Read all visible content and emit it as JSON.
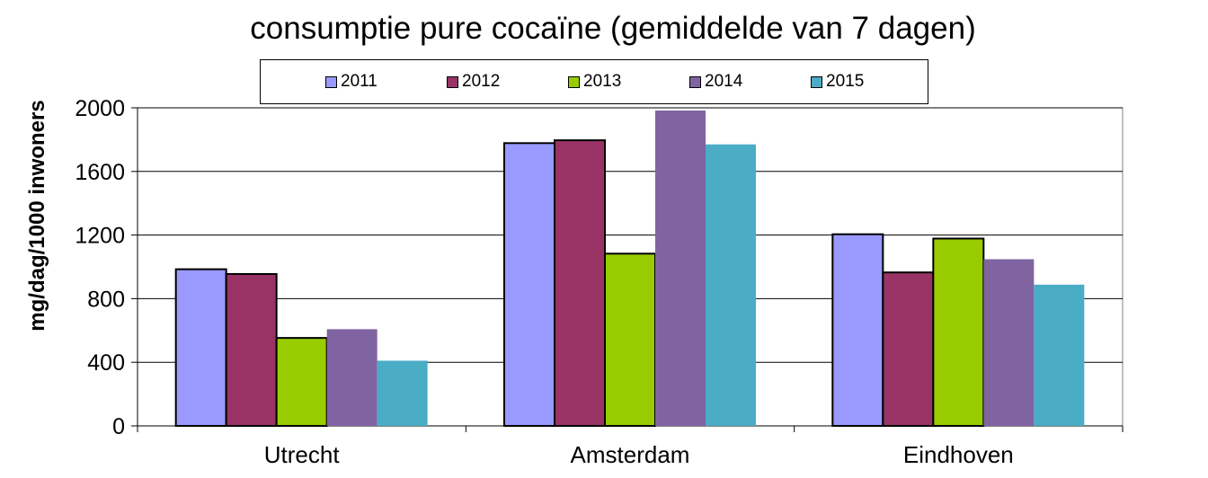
{
  "chart_data": {
    "type": "bar",
    "title": "consumptie pure cocaïne (gemiddelde van 7 dagen)",
    "xlabel": "",
    "ylabel": "mg/dag/1000 inwoners",
    "ylim": [
      0,
      2000
    ],
    "yticks": [
      "0",
      "400",
      "800",
      "1200",
      "1600",
      "2000"
    ],
    "categories": [
      "Utrecht",
      "Amsterdam",
      "Eindhoven"
    ],
    "grid": true,
    "legend_position": "top",
    "series": [
      {
        "name": "2011",
        "color": "#9999FF",
        "values": [
          985,
          1778,
          1205
        ]
      },
      {
        "name": "2012",
        "color": "#993366",
        "values": [
          955,
          1796,
          965
        ]
      },
      {
        "name": "2013",
        "color": "#99CC00",
        "values": [
          553,
          1083,
          1178
        ]
      },
      {
        "name": "2014",
        "color": "#8064A2",
        "values": [
          608,
          1983,
          1048
        ]
      },
      {
        "name": "2015",
        "color": "#4BACC6",
        "values": [
          410,
          1770,
          888
        ]
      }
    ]
  }
}
